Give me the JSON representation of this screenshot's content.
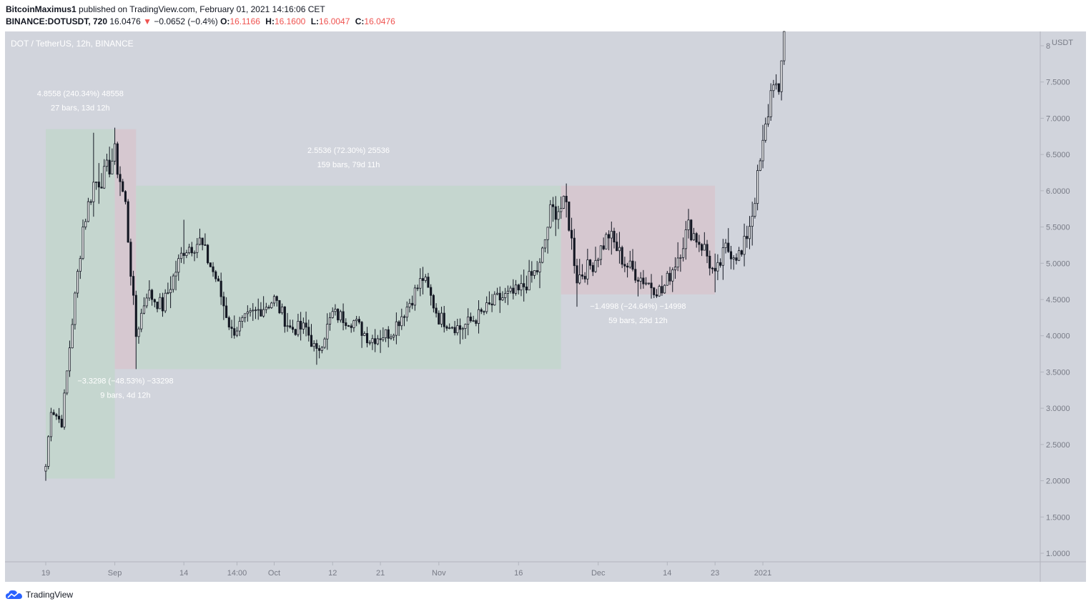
{
  "header": {
    "author": "BitcoinMaximus1",
    "published": "published on TradingView.com, February 01, 2021 14:16:06 CET"
  },
  "ohlc": {
    "symbol": "BINANCE:DOTUSDT, 720",
    "last": "16.0476",
    "change_arrow": "▼",
    "change": "−0.0652 (−0.4%)",
    "o_label": "O:",
    "o": "16.1166",
    "h_label": "H:",
    "h": "16.1600",
    "l_label": "L:",
    "l": "16.0047",
    "c_label": "C:",
    "c": "16.0476"
  },
  "footer": {
    "brand": "TradingView",
    "logo_icon": "tradingview-cloud-icon"
  },
  "colors": {
    "plot_bg": "#d1d4dc",
    "up_range": "#c5d6cf",
    "down_range": "#d6c8d0",
    "candle_up": "#ffffff",
    "candle_down": "#131722",
    "text_light": "#ffffff",
    "axis_text": "#787b86",
    "brand": "#2962ff",
    "down": "#ef5350"
  },
  "chart_data": {
    "type": "candlestick",
    "title": "DOT / TetherUS, 12h, BINANCE",
    "ylabel": "USDT",
    "ylim": [
      0.9,
      8.35
    ],
    "y_ticks": [
      "1.0000",
      "1.5000",
      "2.0000",
      "2.5000",
      "3.0000",
      "3.5000",
      "4.0000",
      "4.5000",
      "5.0000",
      "5.5000",
      "6.0000",
      "6.5000",
      "7.0000",
      "7.5000",
      "8"
    ],
    "x_ticks": [
      "19",
      "Sep",
      "14",
      "14:00",
      "Oct",
      "12",
      "21",
      "Nov",
      "16",
      "Dec",
      "14",
      "23",
      "2021"
    ],
    "series": [
      {
        "type": "candlestick",
        "interval": "12h",
        "anchors": [
          {
            "x": "2020-08-19",
            "close": 2.2,
            "low": 2.0
          },
          {
            "x": "2020-08-20",
            "close": 3.0
          },
          {
            "x": "2020-08-22",
            "close": 2.8
          },
          {
            "x": "2020-08-24",
            "close": 4.2
          },
          {
            "x": "2020-08-26",
            "close": 5.5
          },
          {
            "x": "2020-08-28",
            "close": 6.1,
            "high": 6.8
          },
          {
            "x": "2020-08-30",
            "close": 6.2
          },
          {
            "x": "2020-09-01",
            "close": 6.5,
            "high": 6.87
          },
          {
            "x": "2020-09-03",
            "close": 5.8
          },
          {
            "x": "2020-09-05",
            "close": 4.0,
            "low": 3.54
          },
          {
            "x": "2020-09-07",
            "close": 4.6
          },
          {
            "x": "2020-09-10",
            "close": 4.4
          },
          {
            "x": "2020-09-14",
            "close": 5.2,
            "high": 5.6
          },
          {
            "x": "2020-09-17",
            "close": 5.3
          },
          {
            "x": "2020-09-20",
            "close": 4.8
          },
          {
            "x": "2020-09-23",
            "close": 4.05
          },
          {
            "x": "2020-09-27",
            "close": 4.3
          },
          {
            "x": "2020-10-01",
            "close": 4.5
          },
          {
            "x": "2020-10-04",
            "close": 4.1
          },
          {
            "x": "2020-10-07",
            "close": 4.1
          },
          {
            "x": "2020-10-09",
            "close": 3.75,
            "low": 3.6
          },
          {
            "x": "2020-10-12",
            "close": 4.3
          },
          {
            "x": "2020-10-16",
            "close": 4.2
          },
          {
            "x": "2020-10-19",
            "close": 3.95
          },
          {
            "x": "2020-10-23",
            "close": 4.05
          },
          {
            "x": "2020-10-26",
            "close": 4.4
          },
          {
            "x": "2020-10-29",
            "close": 4.8,
            "high": 4.95
          },
          {
            "x": "2020-11-01",
            "close": 4.25
          },
          {
            "x": "2020-11-05",
            "close": 4.1
          },
          {
            "x": "2020-11-09",
            "close": 4.3
          },
          {
            "x": "2020-11-12",
            "close": 4.5
          },
          {
            "x": "2020-11-16",
            "close": 4.6
          },
          {
            "x": "2020-11-20",
            "close": 4.95
          },
          {
            "x": "2020-11-22",
            "close": 5.7
          },
          {
            "x": "2020-11-25",
            "close": 5.8,
            "high": 6.1
          },
          {
            "x": "2020-11-27",
            "close": 4.8,
            "low": 4.4
          },
          {
            "x": "2020-11-30",
            "close": 5.0
          },
          {
            "x": "2020-12-03",
            "close": 5.4
          },
          {
            "x": "2020-12-06",
            "close": 5.0
          },
          {
            "x": "2020-12-09",
            "close": 4.8
          },
          {
            "x": "2020-12-13",
            "close": 4.6,
            "low": 4.55
          },
          {
            "x": "2020-12-16",
            "close": 5.1
          },
          {
            "x": "2020-12-18",
            "close": 5.5,
            "high": 5.75
          },
          {
            "x": "2020-12-21",
            "close": 5.2
          },
          {
            "x": "2020-12-23",
            "close": 4.8,
            "low": 4.6
          },
          {
            "x": "2020-12-25",
            "close": 5.2
          },
          {
            "x": "2020-12-28",
            "close": 5.1
          },
          {
            "x": "2020-12-30",
            "close": 5.7
          },
          {
            "x": "2021-01-01",
            "close": 6.6
          },
          {
            "x": "2021-01-03",
            "close": 7.6
          },
          {
            "x": "2021-01-04",
            "close": 7.2
          },
          {
            "x": "2021-01-05",
            "close": 8.3
          }
        ]
      }
    ],
    "ranges": [
      {
        "type": "up",
        "from": "2020-08-19",
        "to": "2020-09-01",
        "low": 2.03,
        "high": 6.85,
        "label1": "4.8558 (240.34%) 48558",
        "label2": "27 bars, 13d 12h",
        "label_pos": "top"
      },
      {
        "type": "down",
        "from": "2020-09-01",
        "to": "2020-09-05",
        "low": 3.54,
        "high": 6.85,
        "label1": "−3.3298 (−48.53%) −33298",
        "label2": "9 bars, 4d 12h",
        "label_pos": "bottom"
      },
      {
        "type": "up",
        "from": "2020-09-05",
        "to": "2020-11-24",
        "low": 3.54,
        "high": 6.07,
        "label1": "2.5536 (72.30%) 25536",
        "label2": "159 bars, 79d 11h",
        "label_pos": "top"
      },
      {
        "type": "down",
        "from": "2020-11-24",
        "to": "2020-12-23",
        "low": 4.57,
        "high": 6.07,
        "label1": "−1.4998 (−24.64%) −14998",
        "label2": "59 bars, 29d 12h",
        "label_pos": "bottom"
      }
    ],
    "grid": false
  }
}
